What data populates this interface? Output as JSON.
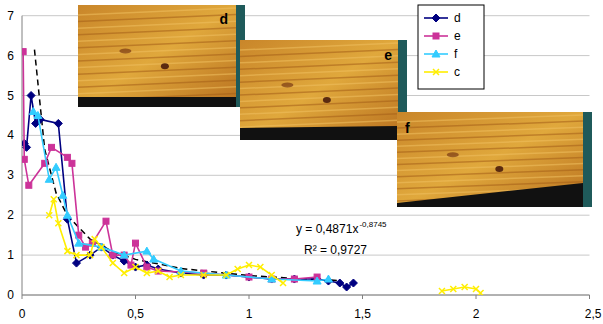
{
  "chart_data": {
    "type": "line",
    "xlim": [
      0,
      2.5
    ],
    "xticks": [
      0,
      {
        "value": 0.5,
        "label": "0,5"
      },
      1,
      {
        "value": 1.5,
        "label": "1,5"
      },
      2,
      {
        "value": 2.5,
        "label": "2,5"
      }
    ],
    "ylim": [
      0,
      7
    ],
    "yticks": [
      0,
      1,
      2,
      3,
      4,
      5,
      6,
      7
    ],
    "grid": true,
    "legend": "top-right",
    "insets": [
      "d",
      "e",
      "f"
    ],
    "annotations": [
      {
        "text": "y = 0,4871x",
        "superscript": "-0,8745"
      },
      {
        "text": "R² = 0,9727"
      }
    ],
    "series": [
      {
        "name": "d",
        "color": "#000080",
        "marker": "diamond",
        "line_style": "solid",
        "x": [
          0.01,
          0.02,
          0.04,
          0.06,
          0.08,
          0.16,
          0.2,
          0.24,
          0.3,
          0.35,
          0.4,
          0.45,
          0.5,
          0.55,
          0.6,
          0.7,
          0.8,
          0.9,
          1.0,
          1.1,
          1.2,
          1.3,
          1.35,
          1.4,
          1.43,
          1.46
        ],
        "values": [
          3.8,
          3.7,
          5.0,
          4.3,
          4.4,
          4.3,
          1.9,
          0.8,
          1.0,
          1.2,
          1.0,
          0.85,
          0.7,
          0.75,
          0.65,
          0.55,
          0.5,
          0.5,
          0.45,
          0.4,
          0.4,
          0.4,
          0.35,
          0.3,
          0.2,
          0.3
        ]
      },
      {
        "name": "e",
        "color": "#cc3399",
        "marker": "square",
        "line_style": "solid",
        "x": [
          0.005,
          0.01,
          0.03,
          0.1,
          0.13,
          0.2,
          0.22,
          0.25,
          0.28,
          0.31,
          0.37,
          0.4,
          0.45,
          0.48,
          0.5,
          0.55,
          0.6,
          0.8,
          1.0,
          1.1,
          1.2,
          1.3
        ],
        "values": [
          6.1,
          3.4,
          2.75,
          3.3,
          3.7,
          3.45,
          3.3,
          1.5,
          1.2,
          1.3,
          1.85,
          1.0,
          1.0,
          0.75,
          1.3,
          0.7,
          0.6,
          0.55,
          0.45,
          0.4,
          0.4,
          0.45
        ]
      },
      {
        "name": "f",
        "color": "#33ccff",
        "marker": "triangle",
        "line_style": "solid",
        "x": [
          0.05,
          0.07,
          0.12,
          0.15,
          0.18,
          0.2,
          0.25,
          0.35,
          0.45,
          0.55,
          0.58,
          0.7,
          0.9,
          1.1,
          1.3,
          1.35
        ],
        "values": [
          4.6,
          4.5,
          2.9,
          3.2,
          2.5,
          2.0,
          1.3,
          1.2,
          1.0,
          1.1,
          0.9,
          0.6,
          0.5,
          0.4,
          0.35,
          0.4
        ]
      },
      {
        "name": "c",
        "color": "#ffee00",
        "marker": "x",
        "line_style": "solid",
        "x": [
          0.12,
          0.14,
          0.16,
          0.2,
          0.24,
          0.3,
          0.32,
          0.35,
          0.4,
          0.45,
          0.5,
          0.55,
          0.6,
          0.65,
          0.7,
          0.8,
          0.9,
          0.95,
          1.0,
          1.05,
          1.1,
          1.15,
          1.5,
          1.85,
          1.9,
          1.95,
          2.0,
          2.02
        ],
        "values": [
          2.0,
          2.4,
          1.8,
          1.1,
          1.0,
          1.0,
          1.4,
          1.2,
          0.8,
          0.55,
          0.7,
          0.55,
          0.6,
          0.45,
          0.5,
          0.5,
          0.5,
          0.65,
          0.75,
          0.7,
          0.5,
          0.3,
          null,
          0.1,
          0.15,
          0.2,
          0.15,
          0.05
        ]
      },
      {
        "color": "#000000",
        "marker": "none",
        "line_style": "dashed",
        "x": [
          0.055,
          0.1,
          0.15,
          0.2,
          0.3,
          0.4,
          0.5,
          0.7,
          1.0,
          1.2,
          1.4
        ],
        "values": [
          6.15,
          3.65,
          2.56,
          1.99,
          1.4,
          1.085,
          0.893,
          0.665,
          0.487,
          0.415,
          0.363
        ]
      }
    ]
  }
}
